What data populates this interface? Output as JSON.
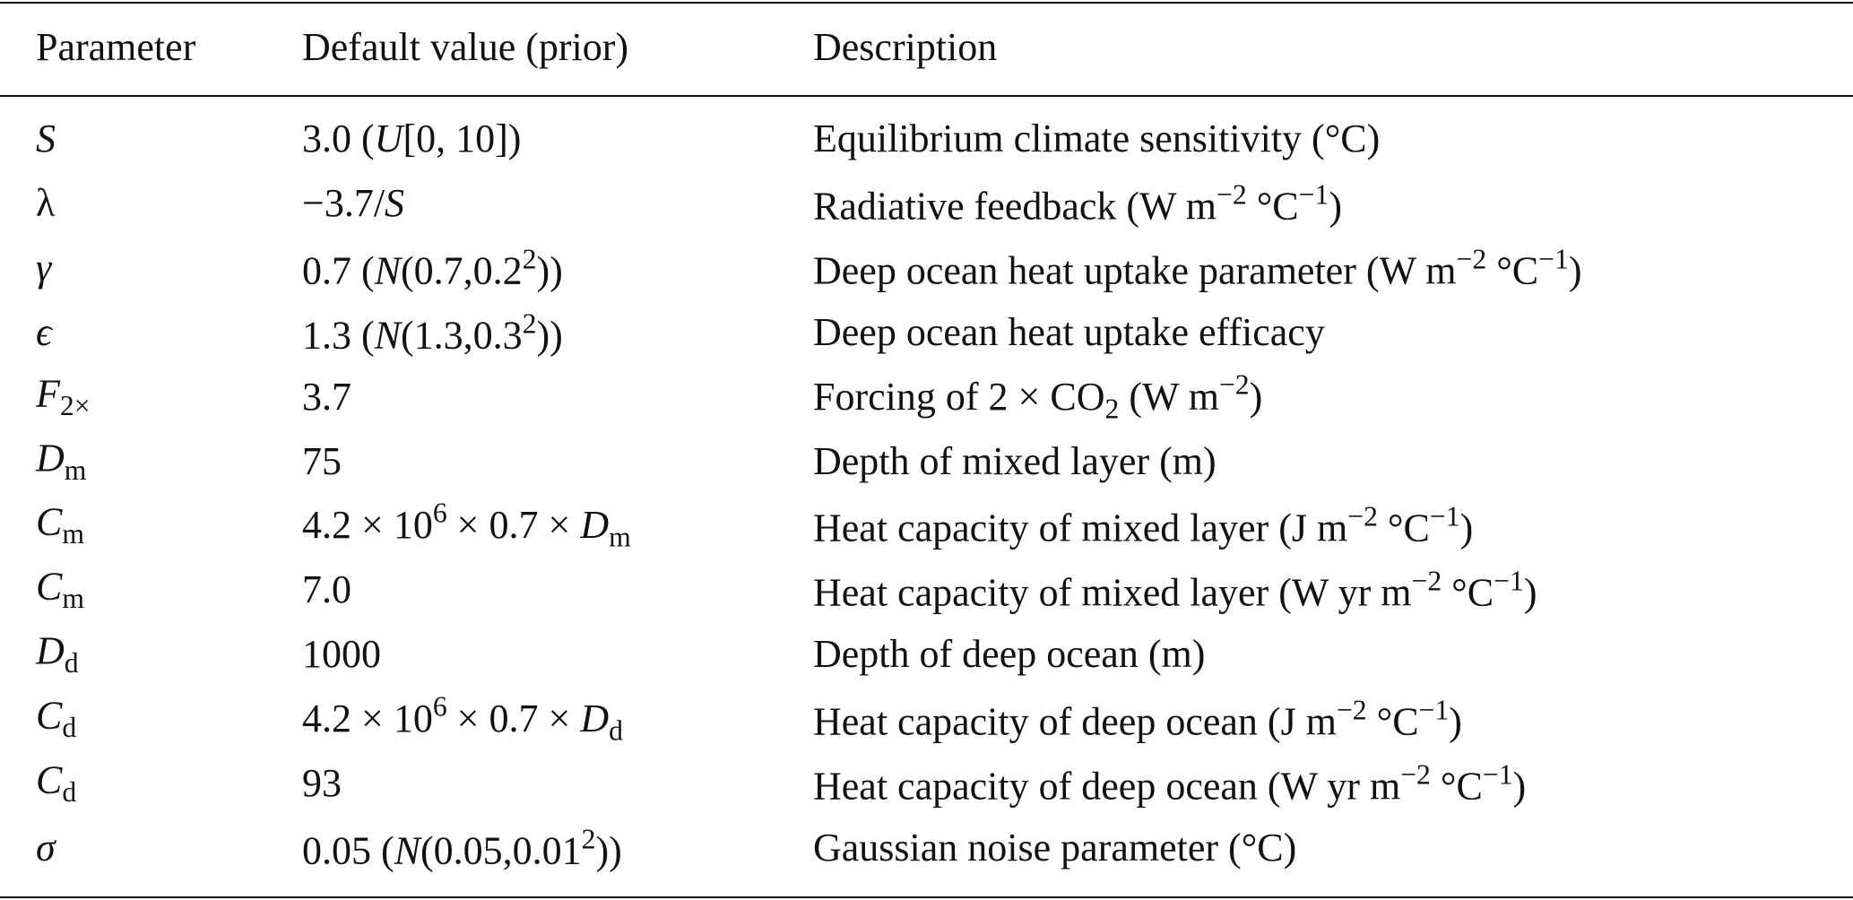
{
  "table": {
    "header": [
      "Parameter",
      "Default value (prior)",
      "Description"
    ],
    "rows": [
      [
        [
          {
            "text": "S",
            "style": "i"
          }
        ],
        [
          "3.0 (",
          {
            "text": "U",
            "style": "i"
          },
          "[0, 10])"
        ],
        [
          "Equilibrium climate sensitivity (°C)"
        ]
      ],
      [
        [
          "λ"
        ],
        [
          "−3.7/",
          {
            "text": "S",
            "style": "i"
          }
        ],
        [
          "Radiative feedback (W m",
          {
            "text": "−2",
            "style": "sup"
          },
          " °C",
          {
            "text": "−1",
            "style": "sup"
          },
          ")"
        ]
      ],
      [
        [
          {
            "text": "γ",
            "style": "i"
          }
        ],
        [
          "0.7 (",
          {
            "text": "N",
            "style": "i"
          },
          "(0.7,0.2",
          {
            "text": "2",
            "style": "sup"
          },
          "))"
        ],
        [
          "Deep ocean heat uptake parameter (W m",
          {
            "text": "−2",
            "style": "sup"
          },
          " °C",
          {
            "text": "−1",
            "style": "sup"
          },
          ")"
        ]
      ],
      [
        [
          {
            "text": "ϵ",
            "style": "i"
          }
        ],
        [
          "1.3 (",
          {
            "text": "N",
            "style": "i"
          },
          "(1.3,0.3",
          {
            "text": "2",
            "style": "sup"
          },
          "))"
        ],
        [
          "Deep ocean heat uptake efficacy"
        ]
      ],
      [
        [
          {
            "text": "F",
            "style": "i"
          },
          {
            "text": "2×",
            "style": "sub"
          }
        ],
        [
          "3.7"
        ],
        [
          "Forcing of 2 × CO",
          {
            "text": "2",
            "style": "sub"
          },
          " (W m",
          {
            "text": "−2",
            "style": "sup"
          },
          ")"
        ]
      ],
      [
        [
          {
            "text": "D",
            "style": "i"
          },
          {
            "text": "m",
            "style": "sub"
          }
        ],
        [
          "75"
        ],
        [
          "Depth of mixed layer (m)"
        ]
      ],
      [
        [
          {
            "text": "C",
            "style": "i"
          },
          {
            "text": "m",
            "style": "sub"
          }
        ],
        [
          "4.2 × 10",
          {
            "text": "6",
            "style": "sup"
          },
          " × 0.7 × ",
          {
            "text": "D",
            "style": "i"
          },
          {
            "text": "m",
            "style": "sub"
          }
        ],
        [
          "Heat capacity of mixed layer (J m",
          {
            "text": "−2",
            "style": "sup"
          },
          " °C",
          {
            "text": "−1",
            "style": "sup"
          },
          ")"
        ]
      ],
      [
        [
          {
            "text": "C",
            "style": "i"
          },
          {
            "text": "m",
            "style": "sub"
          }
        ],
        [
          "7.0"
        ],
        [
          "Heat capacity of mixed layer (W yr m",
          {
            "text": "−2",
            "style": "sup"
          },
          " °C",
          {
            "text": "−1",
            "style": "sup"
          },
          ")"
        ]
      ],
      [
        [
          {
            "text": "D",
            "style": "i"
          },
          {
            "text": "d",
            "style": "sub"
          }
        ],
        [
          "1000"
        ],
        [
          "Depth of deep ocean (m)"
        ]
      ],
      [
        [
          {
            "text": "C",
            "style": "i"
          },
          {
            "text": "d",
            "style": "sub"
          }
        ],
        [
          "4.2 × 10",
          {
            "text": "6",
            "style": "sup"
          },
          " × 0.7 × ",
          {
            "text": "D",
            "style": "i"
          },
          {
            "text": "d",
            "style": "sub"
          }
        ],
        [
          "Heat capacity of deep ocean (J m",
          {
            "text": "−2",
            "style": "sup"
          },
          " °C",
          {
            "text": "−1",
            "style": "sup"
          },
          ")"
        ]
      ],
      [
        [
          {
            "text": "C",
            "style": "i"
          },
          {
            "text": "d",
            "style": "sub"
          }
        ],
        [
          "93"
        ],
        [
          "Heat capacity of deep ocean (W yr m",
          {
            "text": "−2",
            "style": "sup"
          },
          " °C",
          {
            "text": "−1",
            "style": "sup"
          },
          ")"
        ]
      ],
      [
        [
          {
            "text": "σ",
            "style": "i"
          }
        ],
        [
          "0.05 (",
          {
            "text": "N",
            "style": "i"
          },
          "(0.05,0.01",
          {
            "text": "2",
            "style": "sup"
          },
          "))"
        ],
        [
          "Gaussian noise parameter (°C)"
        ]
      ]
    ]
  }
}
